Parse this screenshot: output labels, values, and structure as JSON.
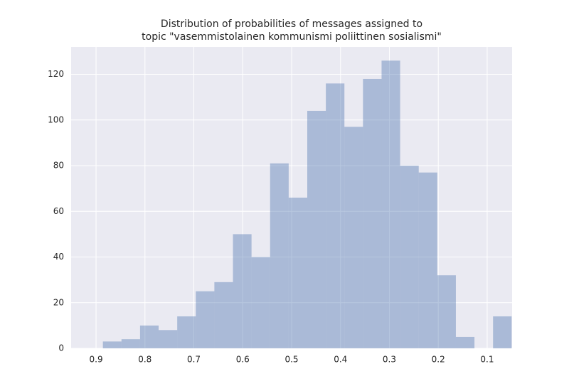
{
  "chart_data": {
    "type": "histogram",
    "title": [
      "Distribution of probabilities of messages assigned to",
      "topic \"vasemmistolainen kommunismi poliittinen sosialismi\""
    ],
    "bins": [
      0.886,
      0.848,
      0.81,
      0.772,
      0.734,
      0.696,
      0.658,
      0.62,
      0.582,
      0.544,
      0.506,
      0.468,
      0.43,
      0.392,
      0.354,
      0.316,
      0.278,
      0.24,
      0.202,
      0.164,
      0.126,
      0.088,
      0.05
    ],
    "values": [
      3,
      4,
      10,
      8,
      14,
      25,
      29,
      50,
      40,
      81,
      66,
      104,
      116,
      97,
      118,
      126,
      80,
      77,
      32,
      5,
      0,
      14
    ],
    "color": "#4c72b0",
    "xlim": [
      0.951,
      0.049
    ],
    "xticks": [
      0.9,
      0.8,
      0.7,
      0.6,
      0.5,
      0.4,
      0.3,
      0.2,
      0.1
    ],
    "ylim": [
      0,
      132
    ],
    "yticks": [
      0,
      20,
      40,
      60,
      80,
      100,
      120
    ],
    "grid": true
  }
}
